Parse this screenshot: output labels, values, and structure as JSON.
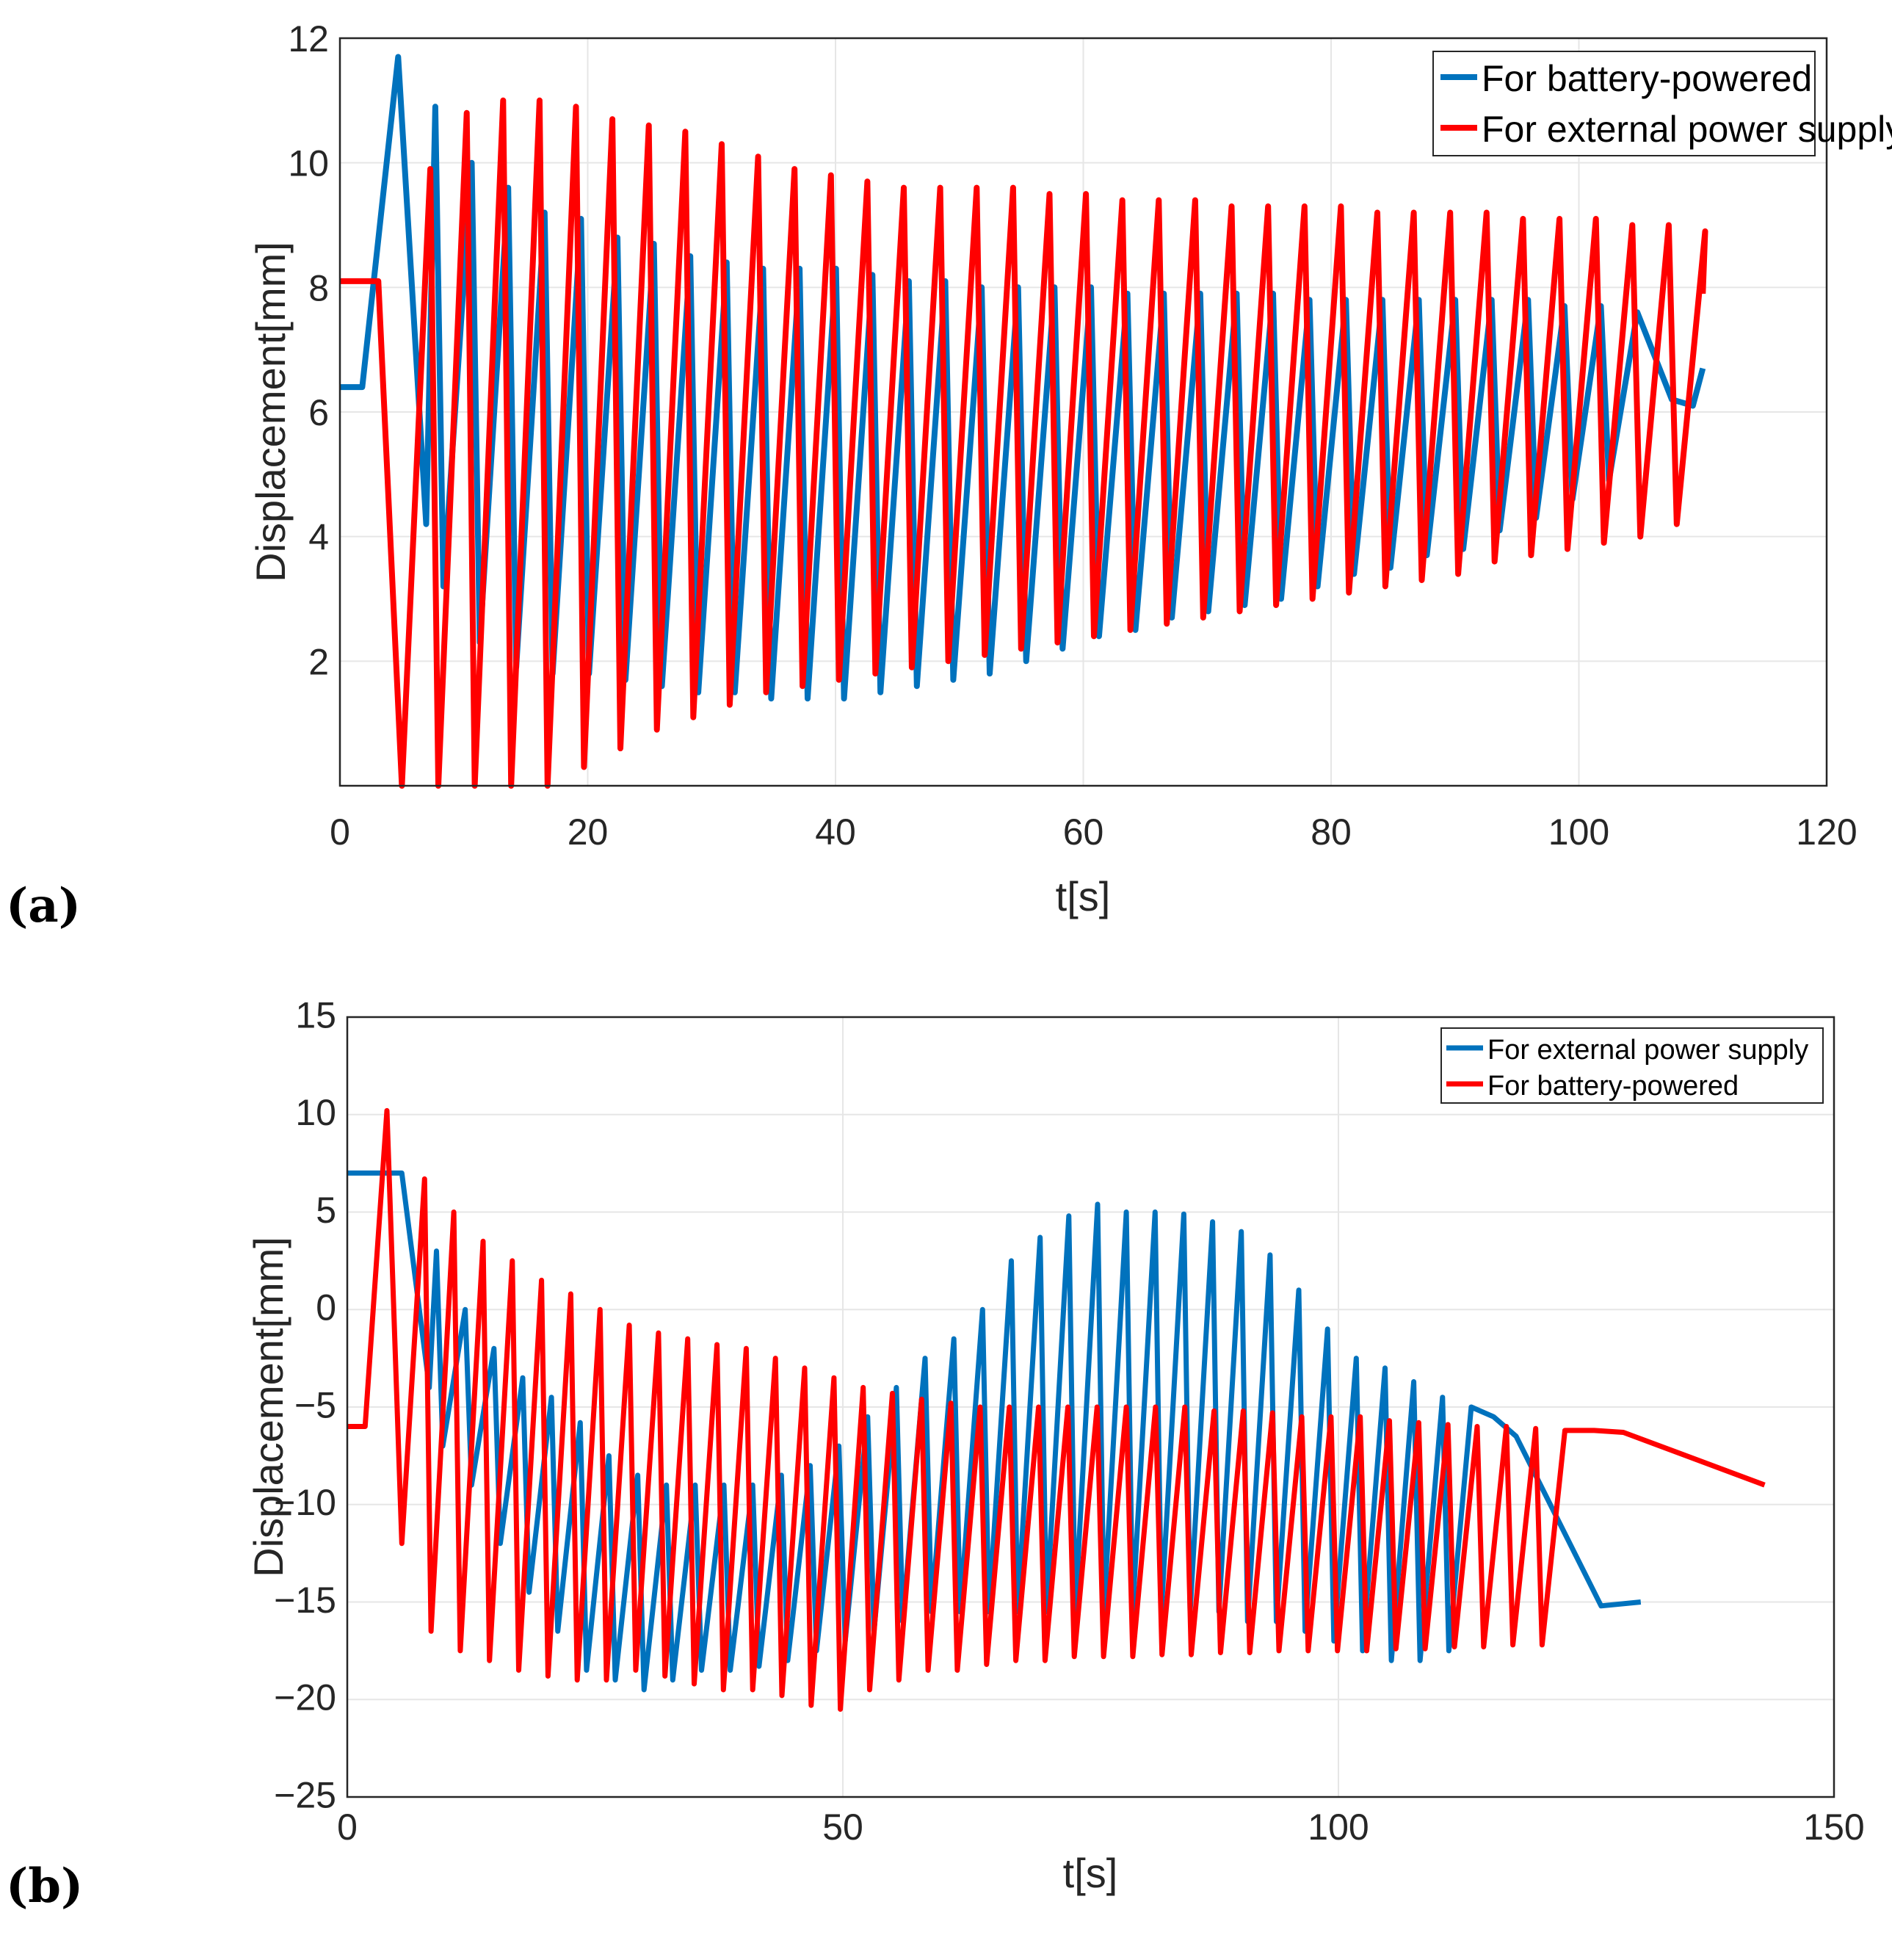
{
  "chart_data": [
    {
      "panel_label": "(a)",
      "type": "line",
      "title": "",
      "xlabel": "t[s]",
      "ylabel": "Displacement[mm]",
      "xlim": [
        0,
        120
      ],
      "ylim": [
        0,
        12
      ],
      "xticks": [
        "0",
        "20",
        "40",
        "60",
        "80",
        "100",
        "120"
      ],
      "yticks": [
        "2",
        "4",
        "6",
        "8",
        "10",
        "12"
      ],
      "grid": true,
      "legend_position": "top-right",
      "series": [
        {
          "name": "For battery-powered",
          "color": "#0072BD",
          "start": [
            0,
            6.4
          ],
          "hold_until": 1.8,
          "initial_peak": [
            4.7,
            11.7
          ],
          "period": 2.94,
          "cycles_from": 7.7,
          "peaks": [
            10.9,
            10.0,
            9.6,
            9.2,
            9.1,
            8.8,
            8.7,
            8.5,
            8.4,
            8.3,
            8.3,
            8.3,
            8.2,
            8.1,
            8.1,
            8.0,
            8.0,
            8.0,
            8.0,
            7.9,
            7.9,
            7.9,
            7.9,
            7.9,
            7.8,
            7.8,
            7.8,
            7.8,
            7.8,
            7.8,
            7.8,
            7.7,
            7.7,
            7.6
          ],
          "troughs": [
            4.2,
            3.2,
            2.3,
            1.9,
            1.8,
            1.8,
            1.7,
            1.6,
            1.5,
            1.5,
            1.4,
            1.4,
            1.4,
            1.5,
            1.6,
            1.7,
            1.8,
            2.0,
            2.2,
            2.4,
            2.5,
            2.7,
            2.8,
            2.9,
            3.0,
            3.2,
            3.4,
            3.5,
            3.7,
            3.8,
            4.1,
            4.3,
            4.6,
            4.9
          ],
          "end": [
            [
              107.5,
              6.2
            ],
            [
              109.2,
              6.1
            ],
            [
              110,
              6.7
            ]
          ]
        },
        {
          "name": "For external power supply",
          "color": "#FF0000",
          "start": [
            0,
            8.1
          ],
          "hold_until": 3.1,
          "period": 2.94,
          "first_trough": [
            5.0,
            0.0
          ],
          "peaks": [
            9.9,
            10.8,
            11.0,
            11.0,
            10.9,
            10.7,
            10.6,
            10.5,
            10.3,
            10.1,
            9.9,
            9.8,
            9.7,
            9.6,
            9.6,
            9.6,
            9.6,
            9.5,
            9.5,
            9.4,
            9.4,
            9.4,
            9.3,
            9.3,
            9.3,
            9.3,
            9.2,
            9.2,
            9.2,
            9.2,
            9.1,
            9.1,
            9.1,
            9.0,
            9.0,
            8.9
          ],
          "troughs": [
            0.0,
            0.0,
            0.0,
            0.0,
            0.0,
            0.3,
            0.6,
            0.9,
            1.1,
            1.3,
            1.5,
            1.6,
            1.7,
            1.8,
            1.9,
            2.0,
            2.1,
            2.2,
            2.3,
            2.4,
            2.5,
            2.6,
            2.7,
            2.8,
            2.9,
            3.0,
            3.1,
            3.2,
            3.3,
            3.4,
            3.6,
            3.7,
            3.8,
            3.9,
            4.0,
            4.2
          ],
          "end": [
            [
              110,
              7.9
            ]
          ]
        }
      ]
    },
    {
      "panel_label": "(b)",
      "type": "line",
      "title": "",
      "xlabel": "t[s]",
      "ylabel": "Displacement[mm]",
      "xlim": [
        0,
        150
      ],
      "ylim": [
        -25,
        15
      ],
      "xticks": [
        "0",
        "50",
        "100",
        "150"
      ],
      "yticks": [
        "15",
        "10",
        "5",
        "0",
        "−5",
        "−10",
        "−15",
        "−20",
        "−25"
      ],
      "grid": true,
      "legend_position": "top-right",
      "series": [
        {
          "name": "For external power supply",
          "color": "#0072BD",
          "start": [
            0,
            7.0
          ],
          "hold_until": 5.5,
          "period": 2.9,
          "cycles_from": 9.0,
          "peaks": [
            3.0,
            0.0,
            -2.0,
            -3.5,
            -4.5,
            -5.8,
            -7.5,
            -8.5,
            -9.0,
            -9.0,
            -9.0,
            -9.0,
            -8.5,
            -8.0,
            -7.0,
            -5.5,
            -4.0,
            -2.5,
            -1.5,
            0.0,
            2.5,
            3.7,
            4.8,
            5.4,
            5.0,
            5.0,
            4.9,
            4.5,
            4.0,
            2.8,
            1.0,
            -1.0,
            -2.5,
            -3.0,
            -3.7,
            -4.5,
            -5.0,
            -5.5,
            -6.5
          ],
          "troughs": [
            -4.0,
            -7.0,
            -9.0,
            -12.0,
            -14.5,
            -16.5,
            -18.5,
            -19.0,
            -19.5,
            -19.0,
            -18.5,
            -18.5,
            -18.3,
            -18.0,
            -17.5,
            -17.0,
            -16.5,
            -16.0,
            -15.5,
            -15.5,
            -15.5,
            -15.5,
            -15.5,
            -15.5,
            -15.5,
            -15.5,
            -15.5,
            -15.5,
            -15.5,
            -16.0,
            -16.0,
            -16.5,
            -17.0,
            -17.5,
            -18.0,
            -18.0,
            -17.5
          ],
          "end": [
            [
              126.5,
              -15.2
            ],
            [
              130.5,
              -15.0
            ]
          ]
        },
        {
          "name": "For battery-powered",
          "color": "#FF0000",
          "start": [
            0,
            -6.0
          ],
          "hold_until": 1.8,
          "initial_peak": [
            4.0,
            10.2
          ],
          "period": 2.95,
          "first_trough": [
            5.5,
            -12.0
          ],
          "peaks": [
            6.7,
            5.0,
            3.5,
            2.5,
            1.5,
            0.8,
            0.0,
            -0.8,
            -1.2,
            -1.5,
            -1.8,
            -2.0,
            -2.5,
            -3.0,
            -3.5,
            -4.0,
            -4.3,
            -4.6,
            -4.8,
            -5.0,
            -5.0,
            -5.0,
            -5.0,
            -5.0,
            -5.0,
            -5.0,
            -5.0,
            -5.2,
            -5.2,
            -5.3,
            -5.5,
            -5.5,
            -5.5,
            -5.7,
            -5.8,
            -5.9,
            -6.0,
            -6.0,
            -6.1,
            -6.2,
            -6.2,
            -6.3
          ],
          "troughs": [
            -15.0,
            -16.5,
            -17.5,
            -18.0,
            -18.5,
            -18.8,
            -19.0,
            -19.0,
            -18.5,
            -18.8,
            -19.2,
            -19.5,
            -19.5,
            -19.8,
            -20.3,
            -20.5,
            -19.5,
            -19.0,
            -18.5,
            -18.5,
            -18.2,
            -18.0,
            -18.0,
            -17.8,
            -17.8,
            -17.8,
            -17.7,
            -17.7,
            -17.6,
            -17.6,
            -17.5,
            -17.5,
            -17.5,
            -17.5,
            -17.4,
            -17.4,
            -17.3,
            -17.3,
            -17.2,
            -17.2
          ],
          "end": [
            [
              143,
              -9.0
            ]
          ]
        }
      ]
    }
  ]
}
